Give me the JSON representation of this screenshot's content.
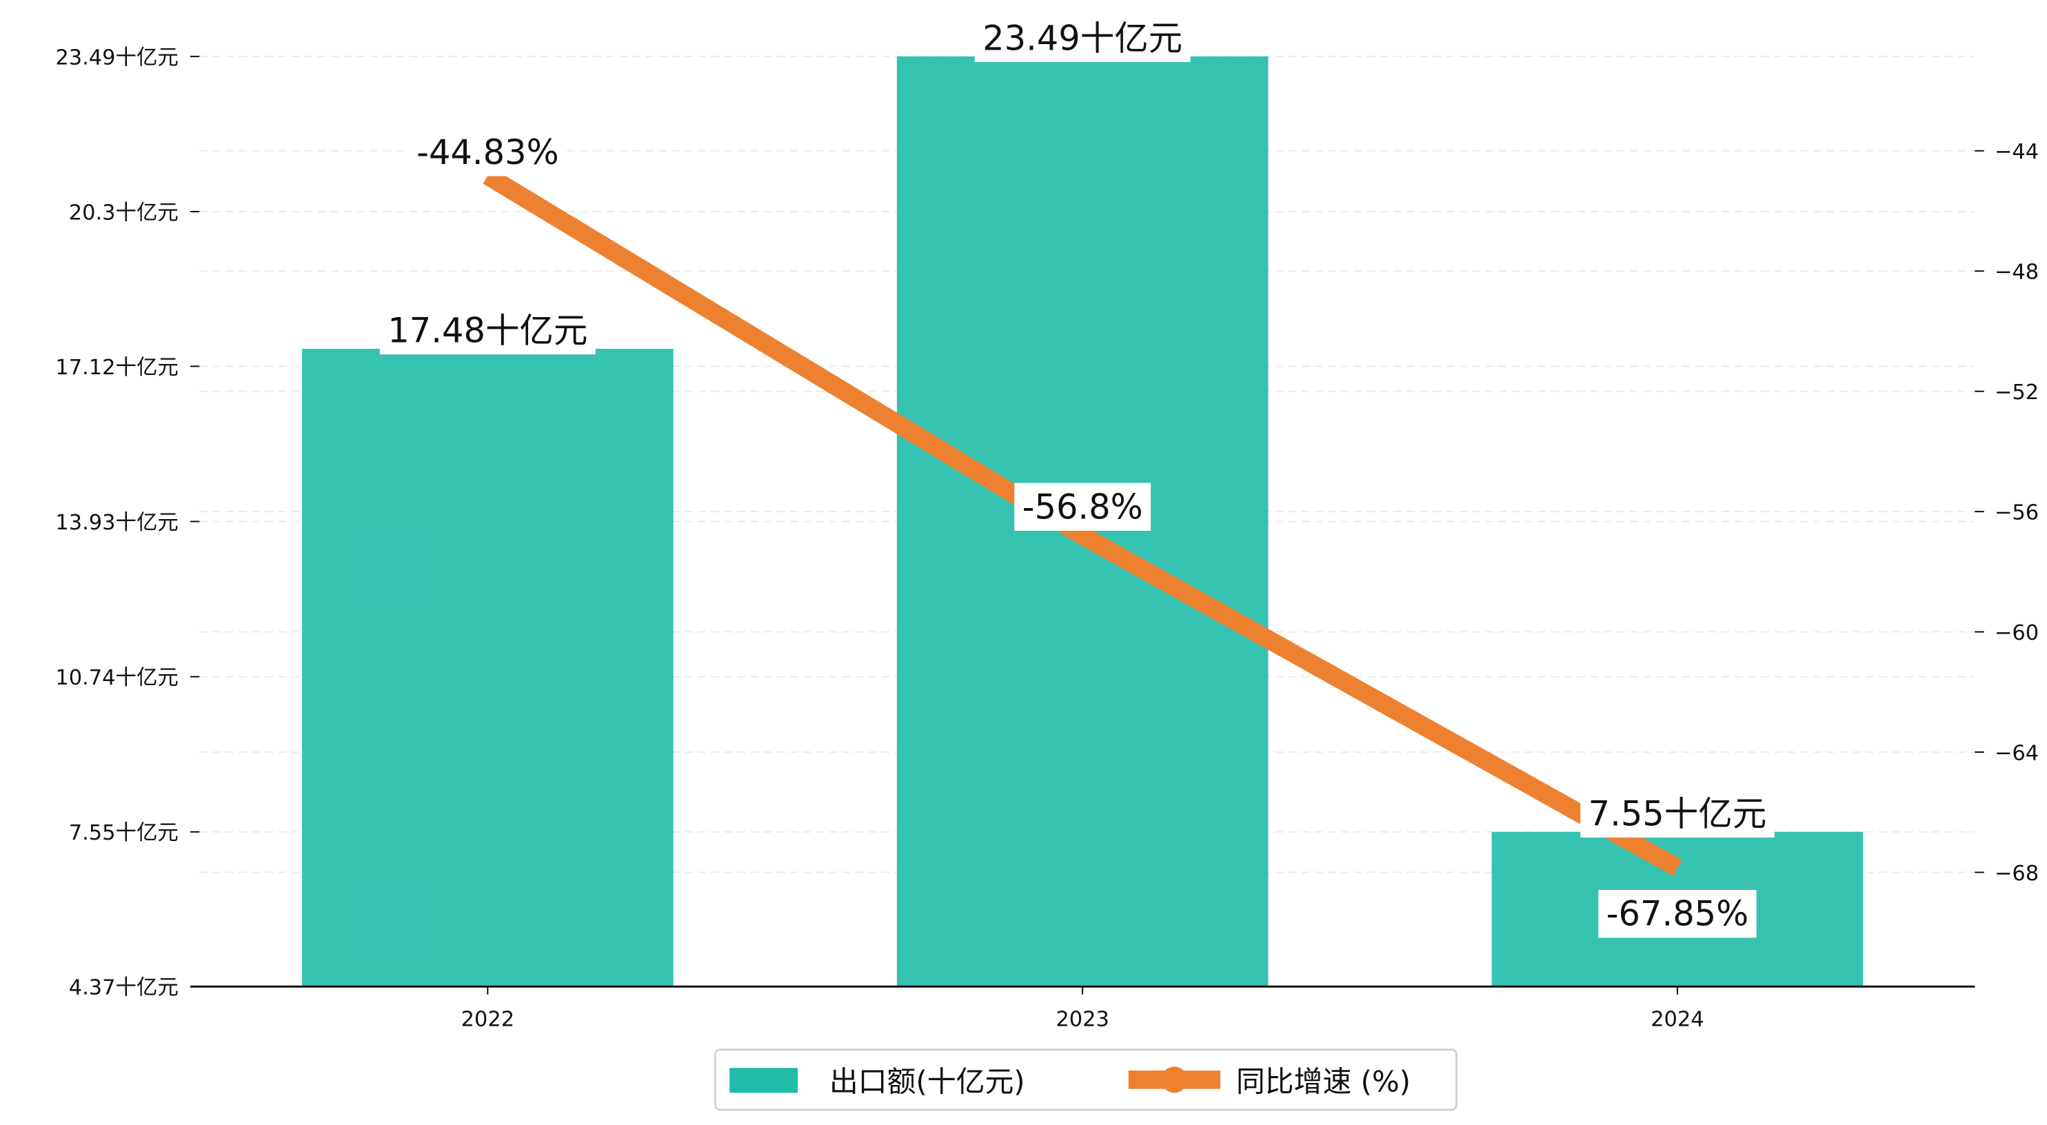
{
  "chart_data": {
    "type": "bar+line",
    "categories": [
      "2022",
      "2023",
      "2024"
    ],
    "series": [
      {
        "name": "出口额(十亿元)",
        "type": "bar",
        "axis": "left",
        "values": [
          17.48,
          23.49,
          7.55
        ],
        "labels": [
          "17.48十亿元",
          "23.49十亿元",
          "7.55十亿元"
        ],
        "color": "#20BBA9"
      },
      {
        "name": "同比增速 (%)",
        "type": "line",
        "axis": "right",
        "values": [
          -44.83,
          -56.8,
          -67.85
        ],
        "labels": [
          "-44.83%",
          "-56.8%",
          "-67.85%"
        ],
        "color": "#EE8130"
      }
    ],
    "left_axis": {
      "ylim": [
        4.37,
        23.49
      ],
      "ticks": [
        4.37,
        7.55,
        10.74,
        13.93,
        17.12,
        20.3,
        23.49
      ],
      "tick_labels": [
        "4.37十亿元",
        "7.55十亿元",
        "10.74十亿元",
        "13.93十亿元",
        "17.12十亿元",
        "20.3十亿元",
        "23.49十亿元"
      ]
    },
    "right_axis": {
      "ylim": [
        -71.8,
        -40.86
      ],
      "ticks": [
        -44,
        -48,
        -52,
        -56,
        -60,
        -64,
        -68
      ],
      "tick_labels": [
        "−44",
        "−48",
        "−52",
        "−56",
        "−60",
        "−64",
        "−68"
      ]
    },
    "grid": true,
    "legend": {
      "placement": "bottom-center",
      "entries": [
        "出口额(十亿元)",
        "同比增速 (%)"
      ]
    }
  }
}
